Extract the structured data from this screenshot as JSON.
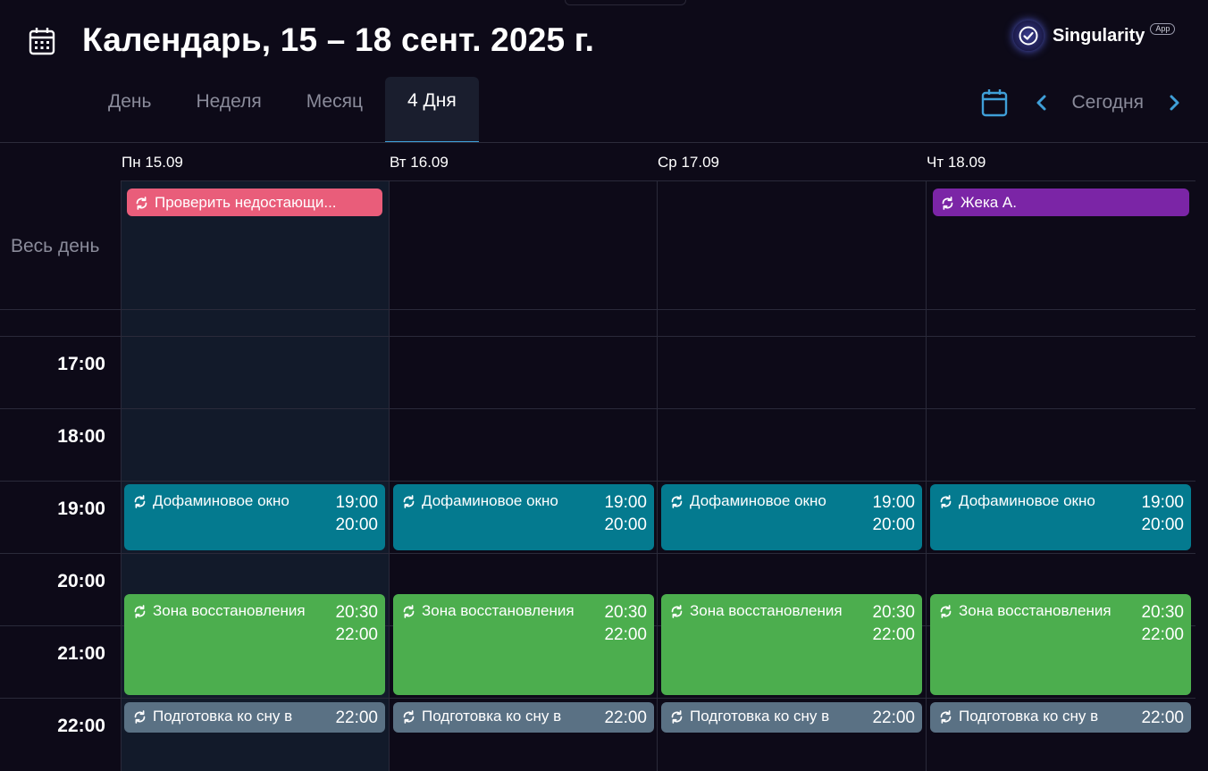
{
  "header": {
    "title": "Календарь, 15 – 18 сент. 2025 г.",
    "brand_name": "Singularity",
    "brand_badge": "App"
  },
  "tabs": [
    {
      "label": "День"
    },
    {
      "label": "Неделя"
    },
    {
      "label": "Месяц"
    },
    {
      "label": "4 Дня"
    }
  ],
  "active_tab": "4 Дня",
  "nav": {
    "today_label": "Сегодня"
  },
  "days": [
    {
      "label": "Пн 15.09"
    },
    {
      "label": "Вт 16.09"
    },
    {
      "label": "Ср 17.09"
    },
    {
      "label": "Чт 18.09"
    }
  ],
  "all_day_label": "Весь день",
  "all_day_events": [
    {
      "day": "Пн 15.09",
      "title": "Проверить недостающи...",
      "color": "#e95d7a",
      "icon": "repeat-icon"
    },
    {
      "day": "Чт 18.09",
      "title": "Жека А.",
      "color": "#7b25a6",
      "icon": "repeat-icon"
    }
  ],
  "hours": [
    "17:00",
    "18:00",
    "19:00",
    "20:00",
    "21:00",
    "22:00"
  ],
  "events": {
    "dopamine": {
      "title": "Дофаминовое окно",
      "start": "19:00",
      "end": "20:00",
      "color": "#047a8f"
    },
    "recovery": {
      "title": "Зона восстановления",
      "start": "20:30",
      "end": "22:00",
      "color": "#4cae4e"
    },
    "sleep": {
      "title": "Подготовка ко сну в",
      "start": "22:00",
      "color": "#5a7184"
    }
  },
  "colors": {
    "background": "#0d0a18",
    "accent": "#3f9fd8",
    "today_column": "#121a2a"
  }
}
